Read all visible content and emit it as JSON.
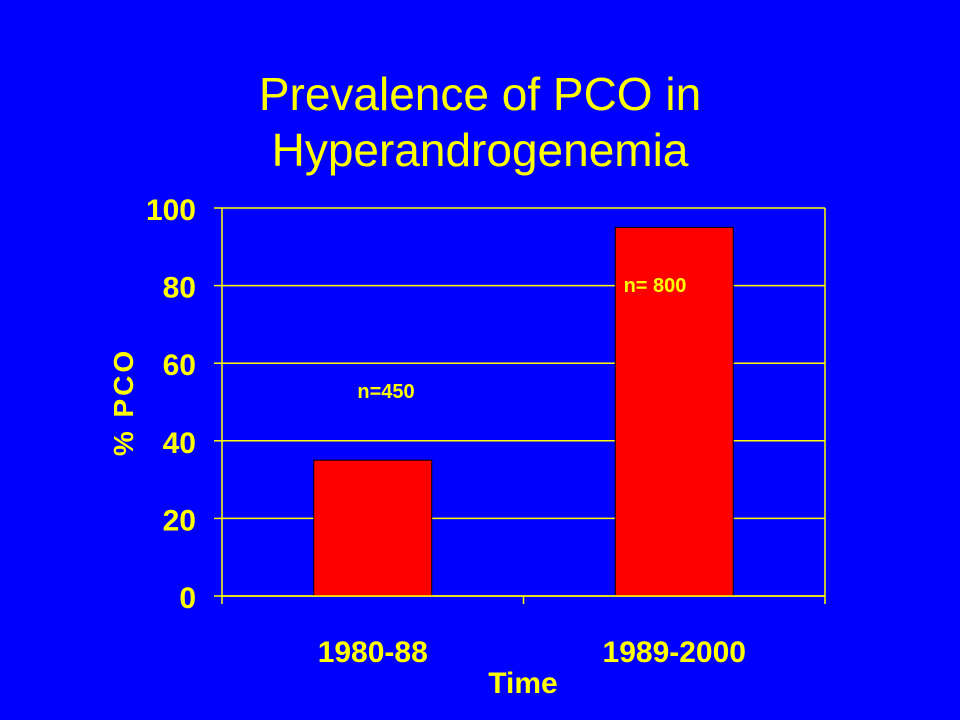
{
  "slide": {
    "title_line1": "Prevalence of PCO in",
    "title_line2": "Hyperandrogenemia"
  },
  "chart_data": {
    "type": "bar",
    "categories": [
      "1980-88",
      "1989-2000"
    ],
    "values": [
      35,
      95
    ],
    "bar_labels": [
      "n=450",
      "n= 800"
    ],
    "xlabel": "Time",
    "ylabel": "% PCO",
    "ylim": [
      0,
      100
    ],
    "yticks": [
      0,
      20,
      40,
      60,
      80,
      100
    ],
    "grid": true,
    "legend": "none"
  },
  "colors": {
    "background": "#0000ff",
    "title": "#ffff00",
    "axis_text": "#ffff00",
    "bar_fill": "#ff0000",
    "bar_label": "#ffff00",
    "grid": "#ffff00"
  }
}
